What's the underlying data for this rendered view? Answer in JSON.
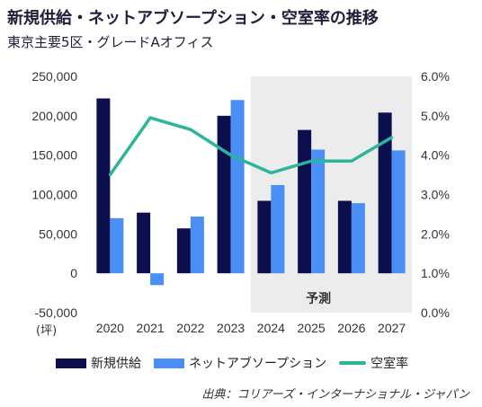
{
  "title": "新規供給・ネットアブソープション・空室率の推移",
  "subtitle": "東京主要5区・グレードAオフィス",
  "unit_label": "(坪)",
  "forecast_label": "予測",
  "source": "出典：コリアーズ・インターナショナル・ジャパン",
  "colors": {
    "supply": "#0b0f4d",
    "absorption": "#4a8ff5",
    "vacancy": "#2bb59a",
    "forecast_bg": "#ececec"
  },
  "chart_data": {
    "type": "bar",
    "categories": [
      "2020",
      "2021",
      "2022",
      "2023",
      "2024",
      "2025",
      "2026",
      "2027"
    ],
    "forecast_from": "2024",
    "y_left": {
      "ylim": [
        -50000,
        250000
      ],
      "ticks": [
        "-50,000",
        "0",
        "50,000",
        "100,000",
        "150,000",
        "200,000",
        "250,000"
      ]
    },
    "y_right": {
      "ylim": [
        0.0,
        6.0
      ],
      "ticks": [
        "0.0%",
        "1.0%",
        "2.0%",
        "3.0%",
        "4.0%",
        "5.0%",
        "6.0%"
      ]
    },
    "series": [
      {
        "name": "新規供給",
        "kind": "bar",
        "axis": "left",
        "values": [
          222000,
          77000,
          57000,
          200000,
          92000,
          182000,
          92000,
          204000
        ]
      },
      {
        "name": "ネットアブソープション",
        "kind": "bar",
        "axis": "left",
        "values": [
          70000,
          -15000,
          72000,
          220000,
          112000,
          157000,
          89000,
          156000
        ]
      },
      {
        "name": "空室率",
        "kind": "line",
        "axis": "right",
        "values": [
          3.5,
          4.95,
          4.65,
          4.0,
          3.55,
          3.85,
          3.85,
          4.45
        ]
      }
    ],
    "legend_position": "bottom",
    "grid": false
  }
}
